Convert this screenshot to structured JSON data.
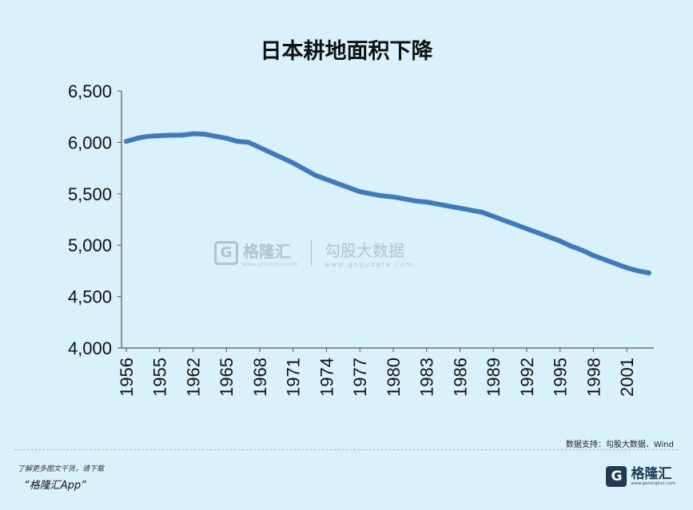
{
  "chart_data": {
    "type": "line",
    "title": "日本耕地面积下降",
    "xlabel": "",
    "ylabel": "",
    "ylim": [
      4000,
      6500
    ],
    "yticks": [
      "4,000",
      "4,500",
      "5,000",
      "5,500",
      "6,000",
      "6,500"
    ],
    "ytick_values": [
      4000,
      4500,
      5000,
      5500,
      6000,
      6500
    ],
    "xtick_labels": [
      "1956",
      "1955",
      "1962",
      "1965",
      "1968",
      "1971",
      "1974",
      "1977",
      "1980",
      "1983",
      "1986",
      "1989",
      "1992",
      "1995",
      "1998",
      "2001"
    ],
    "grid": false,
    "series": [
      {
        "name": "",
        "color": "#3d7bc0",
        "values": [
          6010,
          6040,
          6060,
          6065,
          6070,
          6070,
          6085,
          6080,
          6060,
          6040,
          6010,
          6000,
          5950,
          5900,
          5850,
          5800,
          5740,
          5680,
          5640,
          5600,
          5560,
          5520,
          5500,
          5480,
          5470,
          5450,
          5430,
          5420,
          5400,
          5380,
          5360,
          5340,
          5320,
          5280,
          5240,
          5200,
          5160,
          5120,
          5080,
          5040,
          4990,
          4950,
          4900,
          4860,
          4820,
          4780,
          4750,
          4730
        ]
      }
    ]
  },
  "watermark": {
    "brand": "格隆汇",
    "brand_sub": "www.gelonghui.com",
    "partner": "勾股大数据",
    "partner_sub": "www.gogudata.com"
  },
  "source": "数据支持：勾股大数据、Wind",
  "footer": {
    "promo_line1": "了解更多图文干货，请下载",
    "promo_line2": "“格隆汇App”",
    "logo_text": "格隆汇",
    "logo_sub": "www.gelonghui.com",
    "logo_glyph": "G"
  }
}
